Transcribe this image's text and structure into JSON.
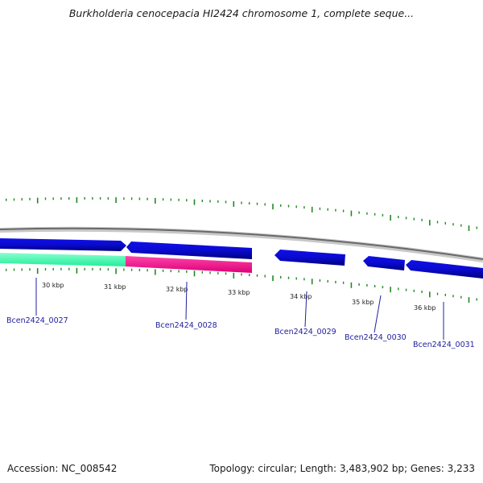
{
  "header": {
    "title": "Burkholderia cenocepacia HI2424 chromosome 1, complete seque..."
  },
  "footer": {
    "accession": "Accession: NC_008542",
    "summary": "Topology: circular; Length: 3,483,902 bp; Genes: 3,233"
  },
  "colors": {
    "forward_gene": "#1010e8",
    "forward_gene_highlight": "#8a8aff",
    "cds_green": "#22ee99",
    "cds_pink": "#ff1a99",
    "backbone": "#909090",
    "tick_green": "#228822",
    "gene_label": "#2020a0"
  },
  "map": {
    "tick_labels": [
      {
        "text": "30 kbp"
      },
      {
        "text": "31 kbp"
      },
      {
        "text": "32 kbp"
      },
      {
        "text": "33 kbp"
      },
      {
        "text": "34 kbp"
      },
      {
        "text": "35 kbp"
      },
      {
        "text": "36 kbp"
      }
    ],
    "genes": [
      {
        "label": "Bcen2424_0027"
      },
      {
        "label": "Bcen2424_0028"
      },
      {
        "label": "Bcen2424_0029"
      },
      {
        "label": "Bcen2424_0030"
      },
      {
        "label": "Bcen2424_0031"
      }
    ]
  }
}
